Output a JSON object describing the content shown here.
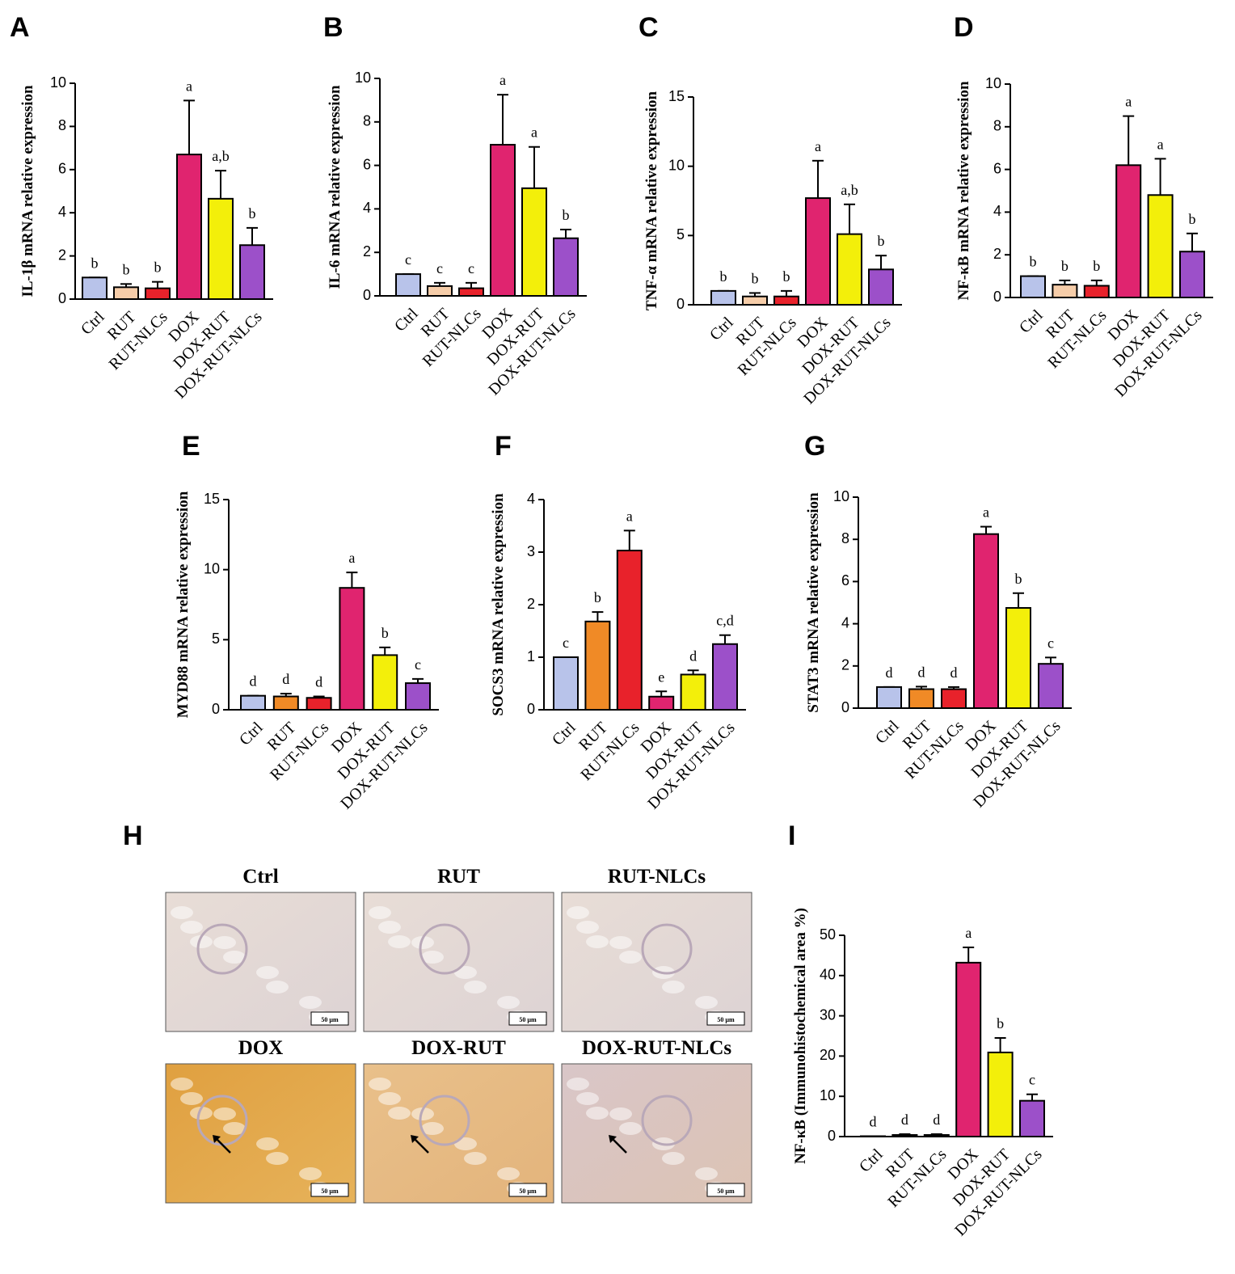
{
  "chart_data": [
    {
      "type": "bar",
      "panel": "A",
      "ylabel": "IL-1β mRNA relative expression",
      "categories": [
        "Ctrl",
        "RUT",
        "RUT-NLCs",
        "DOX",
        "DOX-RUT",
        "DOX-RUT-NLCs"
      ],
      "values": [
        1.0,
        0.55,
        0.5,
        6.7,
        4.65,
        2.5
      ],
      "errors": [
        0,
        0.15,
        0.3,
        2.5,
        1.3,
        0.8
      ],
      "significance": [
        "b",
        "b",
        "b",
        "a",
        "a,b",
        "b"
      ],
      "colors": [
        "#b8c3ea",
        "#f6cda9",
        "#e8222b",
        "#e0246f",
        "#f3ef0a",
        "#9c50c9"
      ],
      "ylim": [
        0,
        10
      ],
      "yticks": [
        0,
        2,
        4,
        6,
        8,
        10
      ]
    },
    {
      "type": "bar",
      "panel": "B",
      "ylabel": "IL-6 mRNA relative expression",
      "categories": [
        "Ctrl",
        "RUT",
        "RUT-NLCs",
        "DOX",
        "DOX-RUT",
        "DOX-RUT-NLCs"
      ],
      "values": [
        1.0,
        0.45,
        0.35,
        6.95,
        4.95,
        2.65
      ],
      "errors": [
        0,
        0.15,
        0.25,
        2.3,
        1.9,
        0.4
      ],
      "significance": [
        "c",
        "c",
        "c",
        "a",
        "a",
        "b"
      ],
      "colors": [
        "#b8c3ea",
        "#f6cda9",
        "#e8222b",
        "#e0246f",
        "#f3ef0a",
        "#9c50c9"
      ],
      "ylim": [
        0,
        10
      ],
      "yticks": [
        0,
        2,
        4,
        6,
        8,
        10
      ]
    },
    {
      "type": "bar",
      "panel": "C",
      "ylabel": "TNF-α mRNA relative expression",
      "categories": [
        "Ctrl",
        "RUT",
        "RUT-NLCs",
        "DOX",
        "DOX-RUT",
        "DOX-RUT-NLCs"
      ],
      "values": [
        1.0,
        0.6,
        0.6,
        7.7,
        5.1,
        2.55
      ],
      "errors": [
        0,
        0.25,
        0.4,
        2.7,
        2.15,
        1.0
      ],
      "significance": [
        "b",
        "b",
        "b",
        "a",
        "a,b",
        "b"
      ],
      "colors": [
        "#b8c3ea",
        "#f6cda9",
        "#e8222b",
        "#e0246f",
        "#f3ef0a",
        "#9c50c9"
      ],
      "ylim": [
        0,
        15
      ],
      "yticks": [
        0,
        5,
        10,
        15
      ]
    },
    {
      "type": "bar",
      "panel": "D",
      "ylabel": "NF-κB mRNA relative expression",
      "categories": [
        "Ctrl",
        "RUT",
        "RUT-NLCs",
        "DOX",
        "DOX-RUT",
        "DOX-RUT-NLCs"
      ],
      "values": [
        1.0,
        0.6,
        0.55,
        6.2,
        4.8,
        2.15
      ],
      "errors": [
        0,
        0.2,
        0.25,
        2.3,
        1.7,
        0.85
      ],
      "significance": [
        "b",
        "b",
        "b",
        "a",
        "a",
        "b"
      ],
      "colors": [
        "#b8c3ea",
        "#f6cda9",
        "#e8222b",
        "#e0246f",
        "#f3ef0a",
        "#9c50c9"
      ],
      "ylim": [
        0,
        10
      ],
      "yticks": [
        0,
        2,
        4,
        6,
        8,
        10
      ]
    },
    {
      "type": "bar",
      "panel": "E",
      "ylabel": "MYD88 mRNA relative expression",
      "categories": [
        "Ctrl",
        "RUT",
        "RUT-NLCs",
        "DOX",
        "DOX-RUT",
        "DOX-RUT-NLCs"
      ],
      "values": [
        1.0,
        0.95,
        0.85,
        8.7,
        3.9,
        1.9
      ],
      "errors": [
        0,
        0.2,
        0.1,
        1.1,
        0.55,
        0.3
      ],
      "significance": [
        "d",
        "d",
        "d",
        "a",
        "b",
        "c"
      ],
      "colors": [
        "#b8c3ea",
        "#f08a26",
        "#e8222b",
        "#e0246f",
        "#f3ef0a",
        "#9c50c9"
      ],
      "ylim": [
        0,
        15
      ],
      "yticks": [
        0,
        5,
        10,
        15
      ]
    },
    {
      "type": "bar",
      "panel": "F",
      "ylabel": "SOCS3 mRNA relative expression",
      "categories": [
        "Ctrl",
        "RUT",
        "RUT-NLCs",
        "DOX",
        "DOX-RUT",
        "DOX-RUT-NLCs"
      ],
      "values": [
        1.0,
        1.68,
        3.03,
        0.25,
        0.67,
        1.25
      ],
      "errors": [
        0,
        0.18,
        0.38,
        0.1,
        0.08,
        0.17
      ],
      "significance": [
        "c",
        "b",
        "a",
        "e",
        "d",
        "c,d"
      ],
      "colors": [
        "#b8c3ea",
        "#f08a26",
        "#e8222b",
        "#e0246f",
        "#f3ef0a",
        "#9c50c9"
      ],
      "ylim": [
        0,
        4
      ],
      "yticks": [
        0,
        1,
        2,
        3,
        4
      ]
    },
    {
      "type": "bar",
      "panel": "G",
      "ylabel": "STAT3 mRNA relative expression",
      "categories": [
        "Ctrl",
        "RUT",
        "RUT-NLCs",
        "DOX",
        "DOX-RUT",
        "DOX-RUT-NLCs"
      ],
      "values": [
        1.0,
        0.9,
        0.9,
        8.25,
        4.75,
        2.1
      ],
      "errors": [
        0,
        0.12,
        0.1,
        0.35,
        0.7,
        0.3
      ],
      "significance": [
        "d",
        "d",
        "d",
        "a",
        "b",
        "c"
      ],
      "colors": [
        "#b8c3ea",
        "#f08a26",
        "#e8222b",
        "#e0246f",
        "#f3ef0a",
        "#9c50c9"
      ],
      "ylim": [
        0,
        10
      ],
      "yticks": [
        0,
        2,
        4,
        6,
        8,
        10
      ]
    },
    {
      "type": "bar",
      "panel": "I",
      "ylabel": "NF-κB (Immunohistochemical area %)",
      "categories": [
        "Ctrl",
        "RUT",
        "RUT-NLCs",
        "DOX",
        "DOX-RUT",
        "DOX-RUT-NLCs"
      ],
      "values": [
        0.1,
        0.4,
        0.4,
        43.2,
        20.9,
        8.9
      ],
      "errors": [
        0,
        0.2,
        0.2,
        3.8,
        3.6,
        1.6
      ],
      "significance": [
        "d",
        "d",
        "d",
        "a",
        "b",
        "c"
      ],
      "colors": [
        "#b8c3ea",
        "#f08a26",
        "#e8222b",
        "#e0246f",
        "#f3ef0a",
        "#9c50c9"
      ],
      "ylim": [
        0,
        50
      ],
      "yticks": [
        0,
        10,
        20,
        30,
        40,
        50
      ]
    }
  ],
  "histology": {
    "panel": "H",
    "images": [
      {
        "title": "Ctrl",
        "scale_bar": "50 µm"
      },
      {
        "title": "RUT",
        "scale_bar": "50 µm"
      },
      {
        "title": "RUT-NLCs",
        "scale_bar": "50 µm"
      },
      {
        "title": "DOX",
        "scale_bar": "50 µm"
      },
      {
        "title": "DOX-RUT",
        "scale_bar": "50 µm"
      },
      {
        "title": "DOX-RUT-NLCs",
        "scale_bar": "50 µm"
      }
    ]
  }
}
